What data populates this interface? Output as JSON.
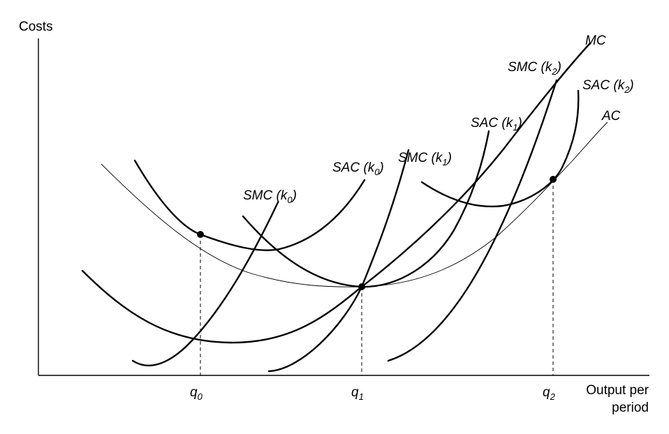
{
  "axes": {
    "y_label": "Costs",
    "x_label_line1": "Output per",
    "x_label_line2": "period"
  },
  "ticks": [
    {
      "base": "q",
      "sub": "0"
    },
    {
      "base": "q",
      "sub": "1"
    },
    {
      "base": "q",
      "sub": "2"
    }
  ],
  "curves": {
    "mc": "MC",
    "ac": "AC",
    "smc_k0": {
      "pre": "SMC (",
      "var": "k",
      "sub": "0",
      "post": ")"
    },
    "sac_k0": {
      "pre": "SAC (",
      "var": "k",
      "sub": "0",
      "post": ")"
    },
    "smc_k1": {
      "pre": "SMC (",
      "var": "k",
      "sub": "1",
      "post": ")"
    },
    "sac_k1": {
      "pre": "SAC (",
      "var": "k",
      "sub": "1",
      "post": ")"
    },
    "smc_k2": {
      "pre": "SMC (",
      "var": "k",
      "sub": "2",
      "post": ")"
    },
    "sac_k2": {
      "pre": "SAC (",
      "var": "k",
      "sub": "2",
      "post": ")"
    }
  }
}
